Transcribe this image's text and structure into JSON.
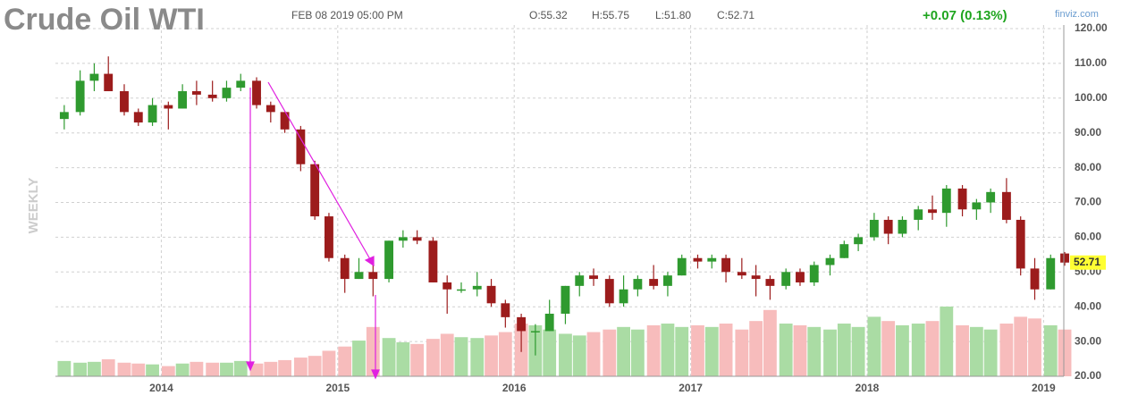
{
  "chart_data": {
    "type": "candlestick",
    "title": "Crude Oil WTI",
    "date_text": "FEB 08 2019 05:00 PM",
    "ohlc_text": [
      "O:55.32",
      "H:55.75",
      "L:51.80",
      "C:52.71"
    ],
    "change": "+0.07 (0.13%)",
    "source": "finviz.com",
    "period": "WEEKLY",
    "up_color": "#2f9a2f",
    "down_color": "#9c1c1c",
    "volume_up_color": "#aadca4",
    "volume_down_color": "#f7bcbc",
    "change_color": "#1fa51f",
    "last_price": 52.71,
    "grid": true,
    "xlim": [
      2013.4,
      2019.14
    ],
    "xticks": [
      2014,
      2015,
      2016,
      2017,
      2018,
      2019
    ],
    "ylim": [
      20,
      120
    ],
    "yticks": [
      {
        "value": 20,
        "label": "20.00"
      },
      {
        "value": 30,
        "label": "30.00"
      },
      {
        "value": 40,
        "label": "40.00"
      },
      {
        "value": 50,
        "label": "50.00"
      },
      {
        "value": 60,
        "label": "60.00"
      },
      {
        "value": 70,
        "label": "70.00"
      },
      {
        "value": 80,
        "label": "80.00"
      },
      {
        "value": 90,
        "label": "90.00"
      },
      {
        "value": 100,
        "label": "100.00"
      },
      {
        "value": 110,
        "label": "110.00"
      },
      {
        "value": 120,
        "label": "120.00"
      }
    ],
    "x": [
      2013.45,
      2013.54,
      2013.62,
      2013.7,
      2013.79,
      2013.87,
      2013.95,
      2014.04,
      2014.12,
      2014.2,
      2014.29,
      2014.37,
      2014.45,
      2014.54,
      2014.62,
      2014.7,
      2014.79,
      2014.87,
      2014.95,
      2015.04,
      2015.12,
      2015.2,
      2015.29,
      2015.37,
      2015.45,
      2015.54,
      2015.62,
      2015.7,
      2015.79,
      2015.87,
      2015.95,
      2016.04,
      2016.12,
      2016.2,
      2016.29,
      2016.37,
      2016.45,
      2016.54,
      2016.62,
      2016.7,
      2016.79,
      2016.87,
      2016.95,
      2017.04,
      2017.12,
      2017.2,
      2017.29,
      2017.37,
      2017.45,
      2017.54,
      2017.62,
      2017.7,
      2017.79,
      2017.87,
      2017.95,
      2018.04,
      2018.12,
      2018.2,
      2018.29,
      2018.37,
      2018.45,
      2018.54,
      2018.62,
      2018.7,
      2018.79,
      2018.87,
      2018.95,
      2019.04,
      2019.12
    ],
    "open": [
      94,
      96,
      105,
      107,
      102,
      96,
      93,
      98,
      97,
      102,
      101,
      100,
      103,
      105,
      98,
      96,
      91,
      81,
      66,
      54,
      48,
      50,
      48,
      59,
      60,
      59,
      47,
      45,
      45,
      46,
      41,
      37,
      33,
      33,
      38,
      46,
      49,
      48,
      41,
      45,
      48,
      46,
      49,
      54,
      53,
      54,
      50,
      49,
      48,
      46,
      50,
      47,
      52,
      54,
      58,
      60,
      65,
      61,
      65,
      68,
      67,
      74,
      68,
      70,
      73,
      65,
      51,
      45,
      55.32
    ],
    "high": [
      98,
      108,
      110,
      112,
      104,
      97,
      100,
      99,
      104,
      105,
      105,
      105,
      107,
      106,
      99,
      96,
      92,
      82,
      67,
      55,
      54,
      52,
      59,
      62,
      62,
      60,
      49,
      47,
      50,
      48,
      42,
      38,
      35,
      42,
      46,
      50,
      51,
      49,
      49,
      49,
      52,
      50,
      55,
      55,
      55,
      55,
      54,
      52,
      49,
      51,
      51,
      53,
      55,
      59,
      61,
      67,
      66,
      66,
      69,
      72,
      75,
      75,
      71,
      74,
      77,
      66,
      54,
      55,
      55.75
    ],
    "low": [
      91,
      95,
      102,
      102,
      95,
      92,
      92,
      91,
      97,
      98,
      99,
      99,
      102,
      97,
      93,
      90,
      79,
      65,
      53,
      44,
      48,
      43,
      47,
      57,
      58,
      47,
      38,
      44,
      43,
      40,
      34,
      27,
      26,
      33,
      35,
      43,
      46,
      40,
      40,
      43,
      45,
      43,
      49,
      51,
      51,
      47,
      48,
      43,
      42,
      45,
      46,
      46,
      49,
      54,
      56,
      59,
      58,
      60,
      62,
      65,
      63,
      66,
      65,
      67,
      64,
      49,
      42,
      45,
      51.8
    ],
    "close": [
      96,
      105,
      107,
      102,
      96,
      93,
      98,
      97,
      102,
      101,
      100,
      103,
      105,
      98,
      96,
      91,
      81,
      66,
      54,
      48,
      50,
      48,
      59,
      60,
      59,
      47,
      45,
      45,
      46,
      41,
      37,
      33,
      33,
      38,
      46,
      49,
      48,
      41,
      45,
      48,
      46,
      49,
      54,
      53,
      54,
      50,
      49,
      48,
      46,
      50,
      47,
      52,
      54,
      58,
      60,
      65,
      61,
      65,
      68,
      67,
      74,
      68,
      70,
      73,
      65,
      51,
      45,
      54,
      52.71
    ],
    "volume": [
      18,
      16,
      17,
      20,
      16,
      15,
      14,
      12,
      15,
      17,
      16,
      16,
      18,
      15,
      17,
      19,
      22,
      24,
      30,
      35,
      42,
      58,
      45,
      40,
      38,
      44,
      50,
      46,
      45,
      48,
      52,
      62,
      60,
      55,
      50,
      48,
      52,
      55,
      58,
      55,
      60,
      62,
      58,
      60,
      58,
      62,
      55,
      65,
      78,
      62,
      60,
      58,
      55,
      62,
      58,
      70,
      65,
      60,
      62,
      65,
      82,
      60,
      58,
      55,
      62,
      70,
      68,
      60,
      55
    ]
  }
}
